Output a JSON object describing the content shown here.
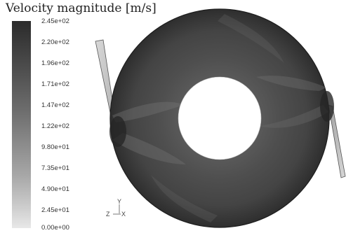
{
  "legend": {
    "title": "Velocity magnitude [m/s]",
    "ticks": [
      "2.45e+02",
      "2.20e+02",
      "1.96e+02",
      "1.71e+02",
      "1.47e+02",
      "1.22e+02",
      "9.80e+01",
      "7.35e+01",
      "4.90e+01",
      "2.45e+01",
      "0.00e+00"
    ]
  },
  "axes": {
    "y_label": "Y",
    "z_label": "Z",
    "x_label": "X"
  }
}
